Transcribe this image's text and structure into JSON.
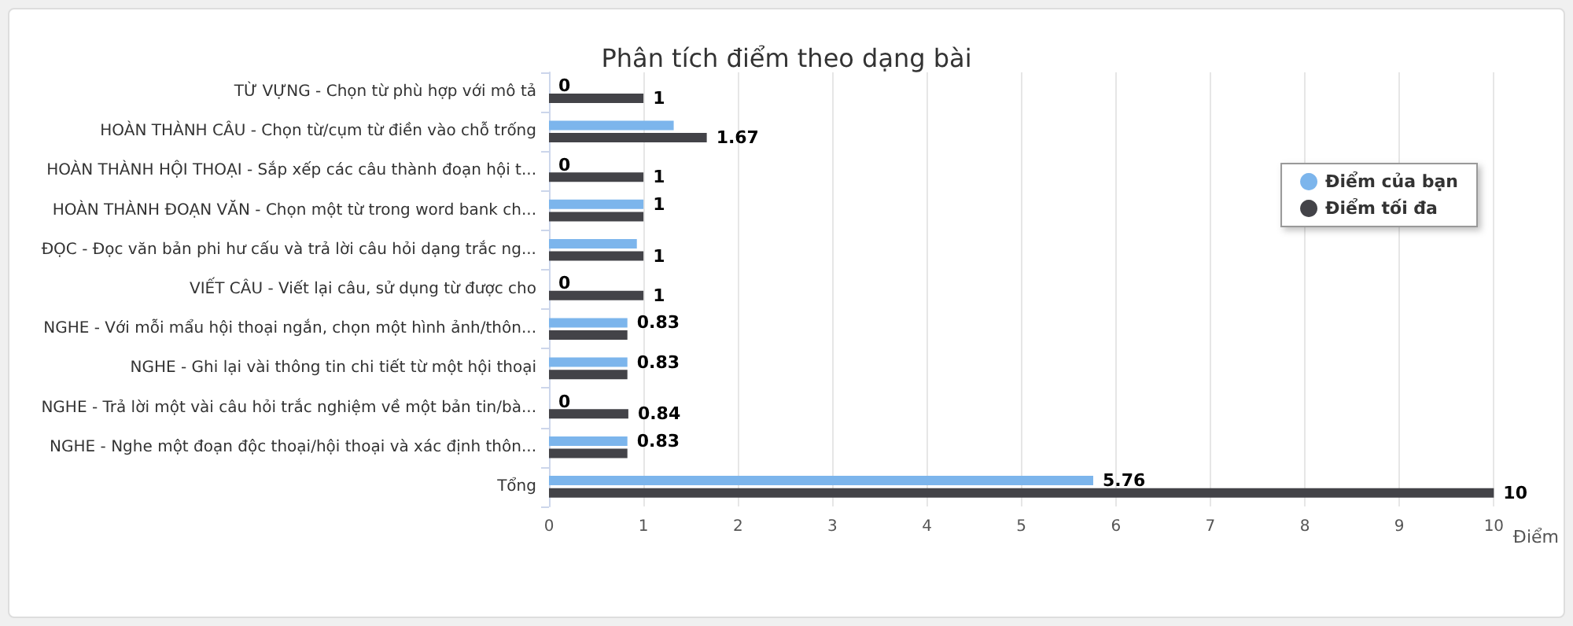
{
  "chart_data": {
    "type": "bar",
    "orientation": "horizontal",
    "title": "Phân tích điểm theo dạng bài",
    "xlabel": "Điểm",
    "categories": [
      "TỪ VỰNG - Chọn từ phù hợp với mô tả",
      "HOÀN THÀNH CÂU - Chọn từ/cụm từ điền vào chỗ trống",
      "HOÀN THÀNH HỘI THOẠI - Sắp xếp các câu thành đoạn hội t...",
      "HOÀN THÀNH ĐOẠN VĂN - Chọn một từ trong word bank ch...",
      "ĐỌC - Đọc văn bản phi hư cấu và trả lời câu hỏi dạng trắc ng...",
      "VIẾT CÂU - Viết lại câu, sử dụng từ được cho",
      "NGHE - Với mỗi mẩu hội thoại ngắn, chọn một hình ảnh/thôn...",
      "NGHE - Ghi lại vài thông tin chi tiết từ một hội thoại",
      "NGHE - Trả lời một vài câu hỏi trắc nghiệm về một bản tin/bà...",
      "NGHE - Nghe một đoạn độc thoại/hội thoại và xác định thôn...",
      "Tổng"
    ],
    "series": [
      {
        "name": "Điểm của bạn",
        "color": "#7cb5ec",
        "values": [
          0,
          1.32,
          0,
          1,
          0.93,
          0,
          0.83,
          0.83,
          0,
          0.83,
          5.76
        ],
        "value_labels": [
          "0",
          null,
          "0",
          "1",
          null,
          "0",
          "0.83",
          "0.83",
          "0",
          "0.83",
          "5.76"
        ]
      },
      {
        "name": "Điểm tối đa",
        "color": "#434348",
        "values": [
          1,
          1.67,
          1,
          1,
          1,
          1,
          0.83,
          0.83,
          0.84,
          0.83,
          10
        ],
        "value_labels": [
          "1",
          "1.67",
          "1",
          null,
          "1",
          "1",
          null,
          null,
          "0.84",
          null,
          "10"
        ]
      }
    ],
    "xlim": [
      0,
      10
    ],
    "xticks": [
      0,
      1,
      2,
      3,
      4,
      5,
      6,
      7,
      8,
      9,
      10
    ],
    "grid": "x",
    "legend": "top right"
  }
}
